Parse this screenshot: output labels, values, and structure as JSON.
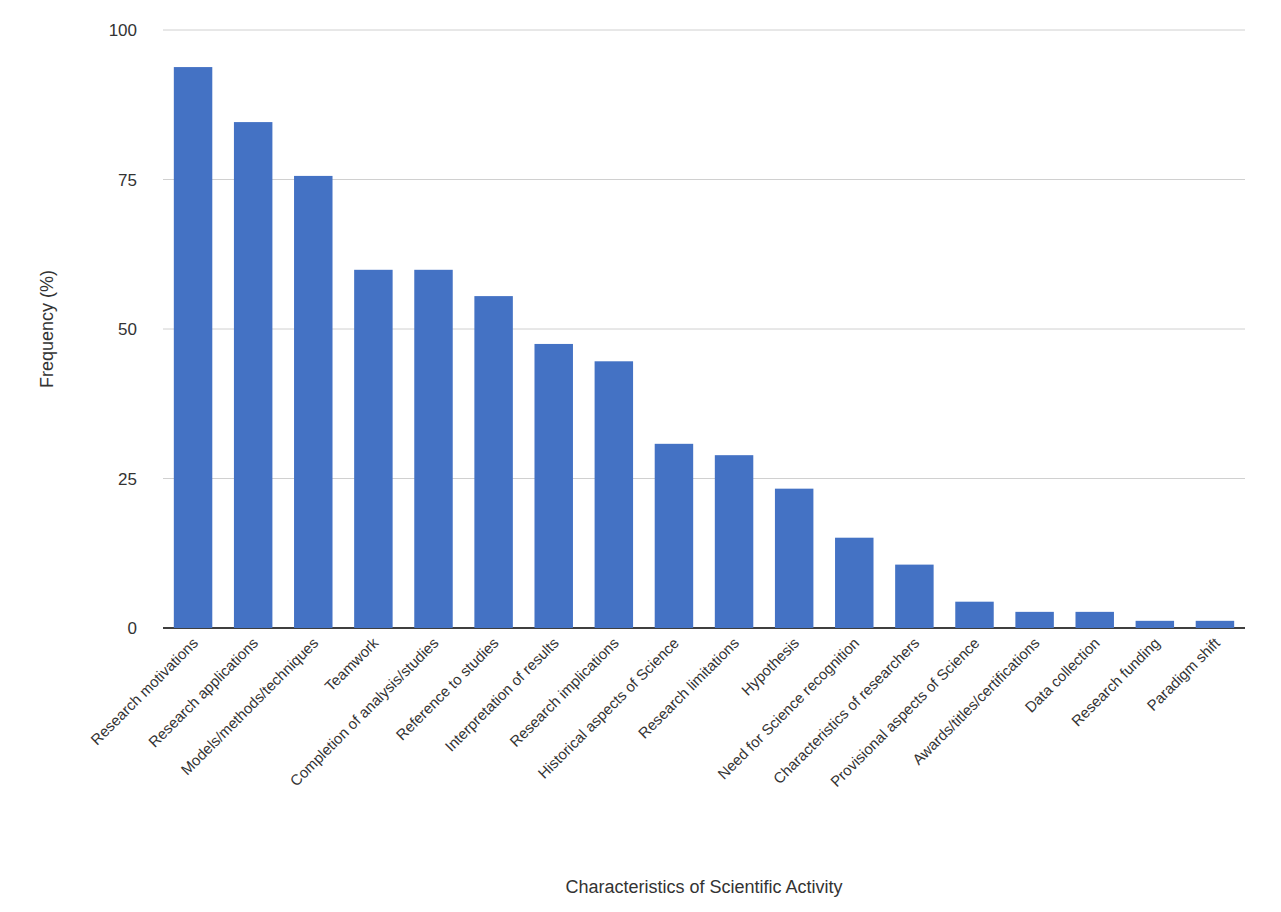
{
  "chart_data": {
    "type": "bar",
    "x_label": "Characteristics of Scientific Activity",
    "y_label": "Frequency (%)",
    "categories": [
      "Research motivations",
      "Research applications",
      "Models/methods/techniques",
      "Teamwork",
      "Completion of analysis/studies",
      "Reference to studies",
      "Interpretation of results",
      "Research implications",
      "Historical aspects of Science",
      "Research limitations",
      "Hypothesis",
      "Need for Science recognition",
      "Characteristics of researchers",
      "Provisional aspects of Science",
      "Awards/titles/certifications",
      "Data collection",
      "Research funding",
      "Paradigm shift"
    ],
    "values": [
      93.8,
      84.6,
      75.6,
      59.9,
      59.9,
      55.5,
      47.5,
      44.6,
      30.8,
      28.9,
      23.3,
      15.1,
      10.6,
      4.4,
      2.7,
      2.7,
      1.2,
      1.2
    ],
    "color": "#4472c4",
    "ylim": [
      0,
      100
    ],
    "yticks": [
      0,
      25,
      50,
      75,
      100
    ],
    "grid": true
  }
}
